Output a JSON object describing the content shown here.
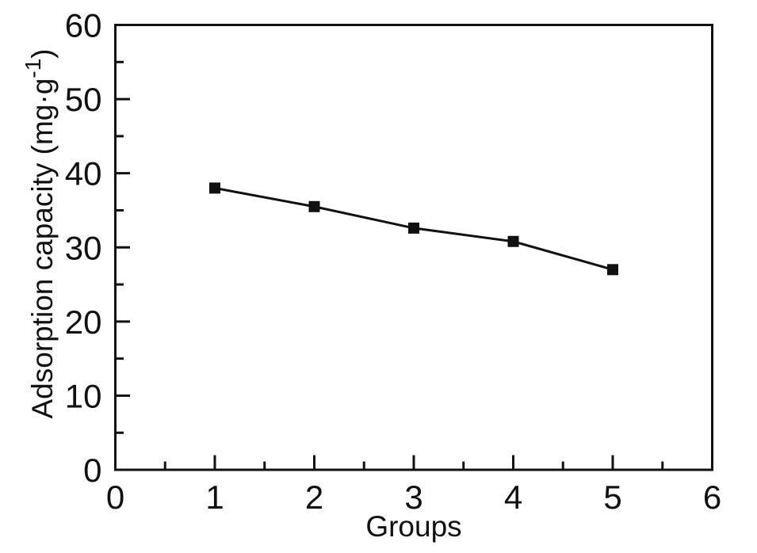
{
  "figure": {
    "background": "#ffffff",
    "ink_color": "#111111"
  },
  "chart_data": {
    "type": "line",
    "title": "",
    "xlabel": "Groups",
    "ylabel": "Adsorption capacity (mg·g⁻¹)",
    "ylabel_parts": {
      "main": "Adsorption capacity (mg·g",
      "sup": "-1",
      "close": ")"
    },
    "x": [
      1,
      2,
      3,
      4,
      5
    ],
    "series": [
      {
        "name": "Adsorption capacity",
        "values": [
          38.0,
          35.5,
          32.6,
          30.8,
          27.0
        ]
      }
    ],
    "xlim": [
      0,
      6
    ],
    "ylim": [
      0,
      60
    ],
    "xticks_major": [
      0,
      1,
      2,
      3,
      4,
      5,
      6
    ],
    "xtick_labels": [
      "0",
      "1",
      "2",
      "3",
      "4",
      "5",
      "6"
    ],
    "xticks_minor_step": 0.5,
    "yticks_major": [
      0,
      10,
      20,
      30,
      40,
      50,
      60
    ],
    "ytick_labels": [
      "0",
      "10",
      "20",
      "30",
      "40",
      "50",
      "60"
    ],
    "yticks_minor_step": 5,
    "grid": false,
    "legend_position": "none",
    "frame": "box",
    "tick_direction": "in",
    "marker": "filled-square",
    "line_color": "#111111",
    "marker_color": "#111111",
    "axis_color": "#111111"
  }
}
